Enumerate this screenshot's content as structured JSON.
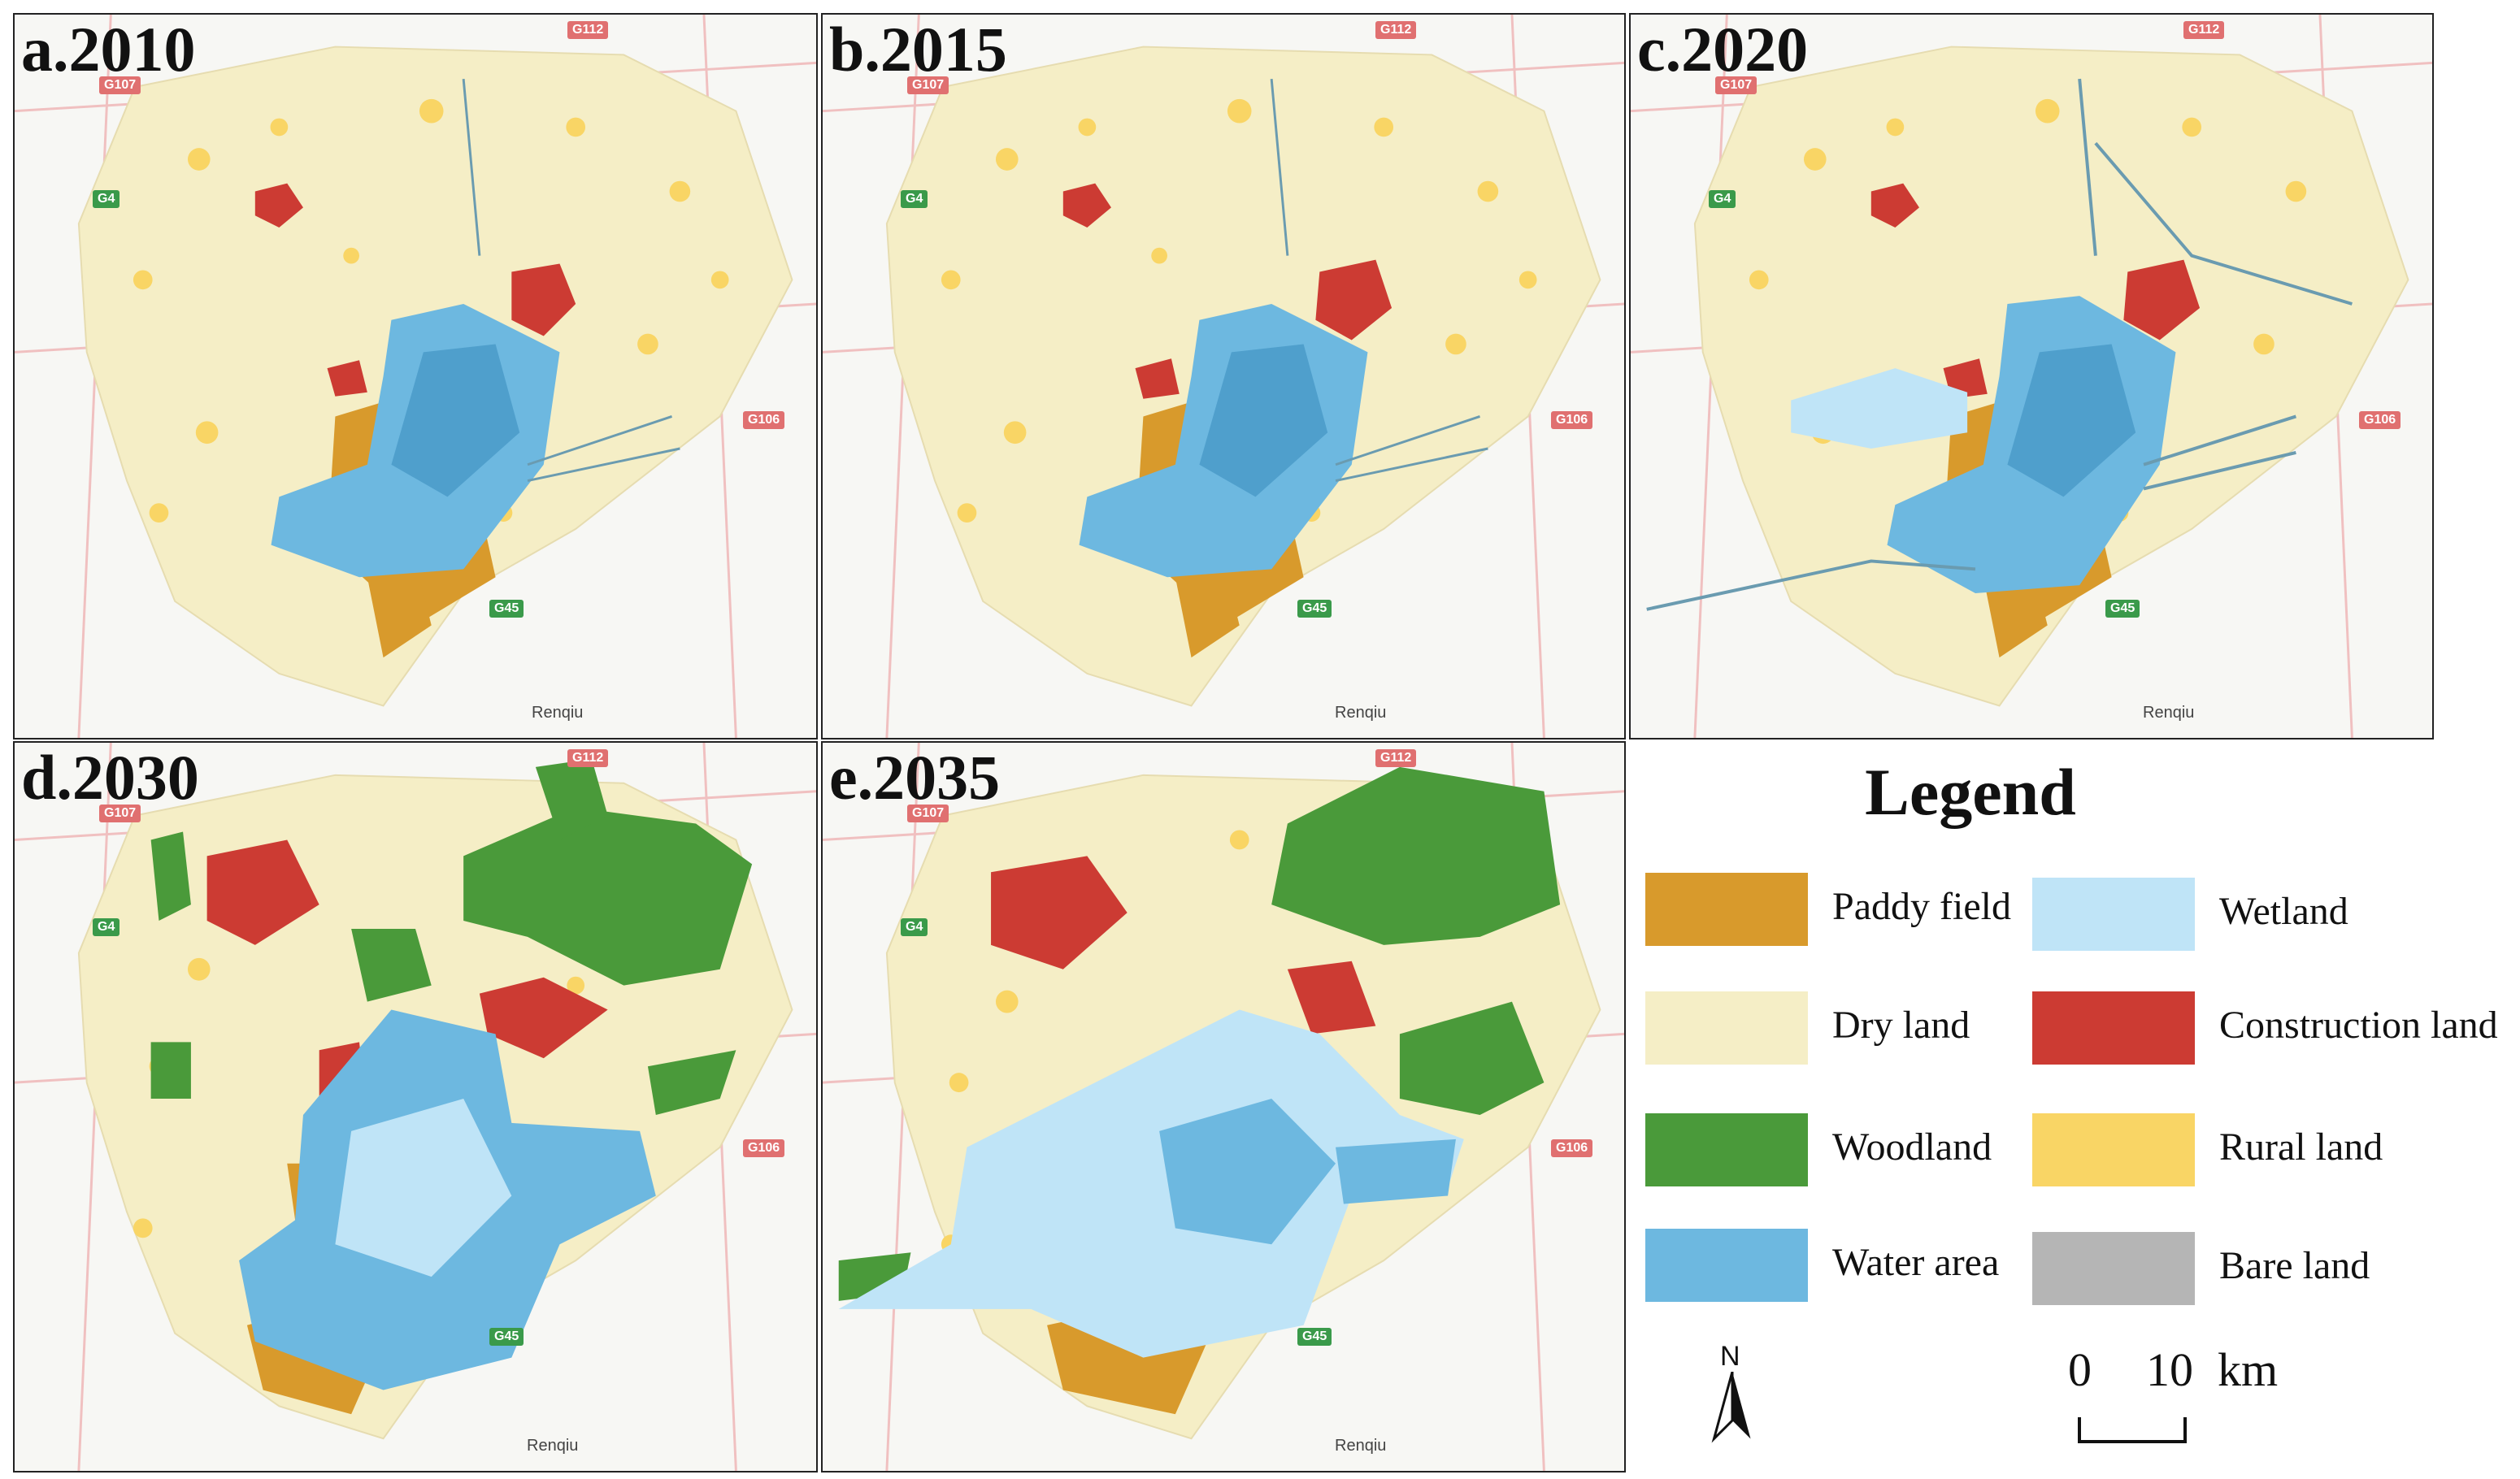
{
  "panels": [
    {
      "label": "a.2010",
      "town": "Renqiu"
    },
    {
      "label": "b.2015",
      "town": "Renqiu"
    },
    {
      "label": "c.2020",
      "town": "Renqiu"
    },
    {
      "label": "d.2030",
      "town": "Renqiu"
    },
    {
      "label": "e.2035",
      "town": "Renqiu"
    }
  ],
  "road_badges": {
    "g112": "G112",
    "g107": "G107",
    "g4": "G4",
    "g106": "G106",
    "g45": "G45"
  },
  "legend": {
    "title": "Legend",
    "items": [
      {
        "label": "Paddy field",
        "color": "#d89a2c"
      },
      {
        "label": "Dry land",
        "color": "#f5eec6"
      },
      {
        "label": "Woodland",
        "color": "#4a9a3a"
      },
      {
        "label": "Water area",
        "color": "#6db8e0"
      },
      {
        "label": "Wetland",
        "color": "#bfe4f7"
      },
      {
        "label": "Construction land",
        "color": "#cc3b33"
      },
      {
        "label": "Rural land",
        "color": "#f9d565"
      },
      {
        "label": "Bare land",
        "color": "#b5b5b5"
      }
    ]
  },
  "north": "N",
  "scale": {
    "zero": "0",
    "ten": "10",
    "unit": "km"
  }
}
